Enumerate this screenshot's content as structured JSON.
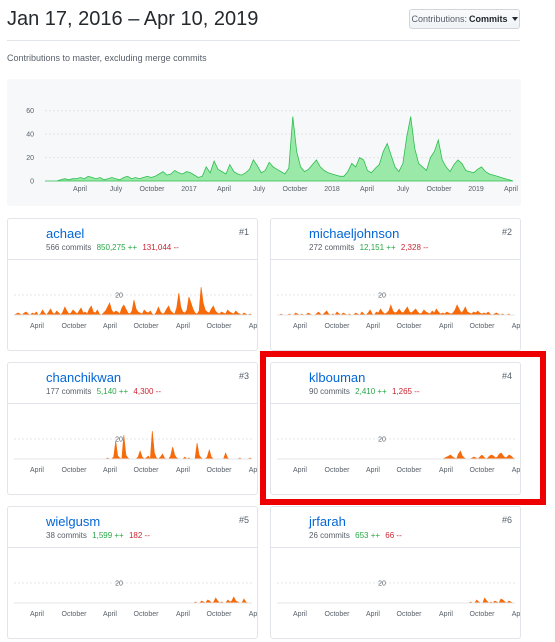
{
  "header": {
    "date_range": "Jan 17, 2016 – Apr 10, 2019",
    "contributions_label": "Contributions:",
    "contributions_value": "Commits",
    "subtitle": "Contributions to master, excluding merge commits"
  },
  "colors": {
    "main_area": "#2cbe4e",
    "main_fill": "#9be9a8",
    "user_area": "#f66a0a",
    "highlight": "#ee0000",
    "link": "#0366d6"
  },
  "chart_data": [
    {
      "type": "area",
      "name": "main-contributions",
      "y_ticks": [
        "60",
        "40",
        "20",
        "0"
      ],
      "ylim": [
        0,
        70
      ],
      "x_ticks": [
        "April",
        "July",
        "October",
        "2017",
        "April",
        "July",
        "October",
        "2018",
        "April",
        "July",
        "October",
        "2019",
        "April"
      ],
      "values": [
        0,
        0,
        0,
        0,
        1,
        2,
        1,
        2,
        2,
        3,
        2,
        4,
        3,
        2,
        3,
        1,
        2,
        3,
        2,
        1,
        3,
        4,
        2,
        3,
        2,
        3,
        4,
        3,
        4,
        6,
        8,
        5,
        6,
        9,
        7,
        6,
        8,
        7,
        5,
        3,
        4,
        12,
        7,
        17,
        10,
        8,
        6,
        14,
        8,
        6,
        5,
        7,
        10,
        18,
        13,
        7,
        9,
        16,
        12,
        10,
        8,
        6,
        11,
        55,
        25,
        12,
        8,
        10,
        14,
        18,
        12,
        9,
        7,
        6,
        5,
        4,
        4,
        8,
        15,
        12,
        20,
        18,
        9,
        7,
        11,
        14,
        25,
        32,
        22,
        12,
        8,
        15,
        38,
        55,
        28,
        15,
        12,
        9,
        20,
        25,
        35,
        18,
        12,
        8,
        14,
        18,
        15,
        9,
        8,
        7,
        10,
        12,
        8,
        6,
        5,
        4,
        3,
        2,
        1,
        0
      ]
    },
    {
      "type": "area",
      "name": "achael",
      "y_tick": "20",
      "ylim": [
        0,
        35
      ],
      "x_ticks": [
        "April",
        "October",
        "April",
        "October",
        "April",
        "October",
        "Ap"
      ],
      "values": [
        0,
        1,
        2,
        1,
        0,
        2,
        3,
        1,
        0,
        2,
        1,
        3,
        0,
        1,
        5,
        2,
        0,
        3,
        6,
        2,
        1,
        4,
        2,
        0,
        3,
        8,
        4,
        1,
        2,
        5,
        3,
        1,
        4,
        7,
        2,
        3,
        1,
        6,
        9,
        3,
        2,
        5,
        1,
        0,
        2,
        4,
        8,
        12,
        5,
        2,
        4,
        3,
        1,
        7,
        10,
        6,
        2,
        1,
        4,
        15,
        6,
        3,
        2,
        1,
        5,
        3,
        2,
        4,
        1,
        0,
        3,
        8,
        3,
        1,
        2,
        6,
        9,
        4,
        2,
        1,
        7,
        22,
        8,
        3,
        2,
        5,
        18,
        12,
        6,
        2,
        1,
        4,
        28,
        12,
        5,
        3,
        2,
        6,
        9,
        4,
        2,
        1,
        3,
        2,
        1,
        5,
        3,
        2,
        1,
        4,
        2,
        1,
        0,
        2,
        1,
        0,
        1,
        0
      ]
    },
    {
      "type": "area",
      "name": "michaeljohnson",
      "y_tick": "20",
      "ylim": [
        0,
        35
      ],
      "x_ticks": [
        "April",
        "October",
        "April",
        "October",
        "April",
        "October",
        "Ap"
      ],
      "values": [
        0,
        0,
        1,
        0,
        0,
        0,
        1,
        0,
        0,
        2,
        1,
        0,
        1,
        0,
        0,
        2,
        1,
        0,
        0,
        1,
        3,
        1,
        0,
        2,
        4,
        1,
        0,
        1,
        0,
        3,
        1,
        0,
        2,
        1,
        0,
        1,
        0,
        0,
        2,
        1,
        0,
        3,
        1,
        0,
        2,
        5,
        1,
        0,
        3,
        2,
        6,
        3,
        1,
        2,
        4,
        10,
        4,
        2,
        3,
        6,
        3,
        2,
        5,
        8,
        3,
        2,
        4,
        6,
        3,
        1,
        2,
        5,
        3,
        2,
        1,
        4,
        2,
        6,
        3,
        1,
        2,
        1,
        3,
        2,
        1,
        2,
        5,
        10,
        6,
        2,
        4,
        8,
        3,
        2,
        1,
        3,
        2,
        4,
        2,
        1,
        2,
        1,
        3,
        1,
        0,
        1,
        2,
        1,
        0,
        1,
        0,
        0,
        1,
        0,
        0,
        0
      ]
    },
    {
      "type": "area",
      "name": "chanchikwan",
      "y_tick": "20",
      "ylim": [
        0,
        35
      ],
      "x_ticks": [
        "April",
        "October",
        "April",
        "October",
        "April",
        "October",
        "Ap"
      ],
      "values": [
        0,
        0,
        0,
        0,
        0,
        0,
        0,
        0,
        0,
        0,
        0,
        0,
        0,
        0,
        0,
        0,
        0,
        0,
        0,
        0,
        0,
        0,
        0,
        0,
        0,
        0,
        0,
        0,
        0,
        0,
        0,
        0,
        0,
        0,
        0,
        0,
        0,
        0,
        0,
        0,
        0,
        0,
        0,
        0,
        0,
        0,
        1,
        0,
        0,
        2,
        18,
        3,
        1,
        0,
        24,
        4,
        1,
        0,
        0,
        0,
        0,
        2,
        8,
        2,
        0,
        1,
        3,
        0,
        28,
        6,
        1,
        0,
        2,
        5,
        1,
        0,
        0,
        3,
        12,
        4,
        1,
        0,
        0,
        0,
        2,
        0,
        1,
        0,
        0,
        0,
        16,
        4,
        1,
        0,
        0,
        2,
        9,
        2,
        0,
        0,
        0,
        0,
        0,
        0,
        6,
        1,
        0,
        0,
        0,
        0,
        0,
        1,
        0,
        0,
        0,
        0,
        1,
        0
      ]
    },
    {
      "type": "area",
      "name": "klbouman",
      "y_tick": "20",
      "ylim": [
        0,
        35
      ],
      "x_ticks": [
        "April",
        "October",
        "April",
        "October",
        "April",
        "October",
        "Ap"
      ],
      "values": [
        0,
        0,
        0,
        0,
        0,
        0,
        0,
        0,
        0,
        0,
        0,
        0,
        0,
        0,
        0,
        0,
        0,
        0,
        0,
        0,
        0,
        0,
        0,
        0,
        0,
        0,
        0,
        0,
        0,
        0,
        0,
        0,
        0,
        0,
        0,
        0,
        0,
        0,
        0,
        0,
        0,
        0,
        0,
        0,
        0,
        0,
        0,
        0,
        0,
        0,
        0,
        0,
        0,
        0,
        0,
        0,
        0,
        0,
        0,
        0,
        0,
        0,
        0,
        0,
        0,
        0,
        0,
        0,
        0,
        0,
        0,
        0,
        0,
        0,
        0,
        0,
        0,
        0,
        0,
        0,
        0,
        0,
        0,
        0,
        0,
        0,
        1,
        2,
        3,
        4,
        2,
        1,
        0,
        5,
        8,
        3,
        1,
        0,
        0,
        0,
        1,
        2,
        1,
        0,
        2,
        4,
        2,
        0,
        1,
        3,
        4,
        3,
        1,
        2,
        5,
        6,
        3,
        1,
        2,
        4,
        3,
        1,
        0
      ]
    },
    {
      "type": "area",
      "name": "wielgusm",
      "y_tick": "20",
      "ylim": [
        0,
        35
      ],
      "x_ticks": [
        "April",
        "October",
        "April",
        "October",
        "April",
        "October",
        "Ap"
      ],
      "values": [
        0,
        0,
        0,
        0,
        0,
        0,
        0,
        0,
        0,
        0,
        0,
        0,
        0,
        0,
        0,
        0,
        0,
        0,
        0,
        0,
        0,
        0,
        0,
        0,
        0,
        0,
        0,
        0,
        0,
        0,
        0,
        0,
        0,
        0,
        0,
        0,
        0,
        0,
        0,
        0,
        0,
        0,
        0,
        0,
        0,
        0,
        0,
        0,
        0,
        0,
        0,
        0,
        0,
        0,
        0,
        0,
        0,
        0,
        0,
        0,
        0,
        0,
        0,
        0,
        0,
        0,
        0,
        0,
        0,
        0,
        0,
        0,
        0,
        0,
        0,
        0,
        0,
        0,
        0,
        0,
        0,
        0,
        0,
        0,
        0,
        0,
        0,
        0,
        0,
        0,
        1,
        0,
        0,
        2,
        1,
        0,
        3,
        2,
        0,
        1,
        5,
        2,
        0,
        1,
        0,
        0,
        3,
        1,
        2,
        6,
        2,
        1,
        0,
        0,
        4,
        1,
        0,
        0,
        0
      ]
    },
    {
      "type": "area",
      "name": "jrfarah",
      "y_tick": "20",
      "ylim": [
        0,
        35
      ],
      "x_ticks": [
        "April",
        "October",
        "April",
        "October",
        "April",
        "October",
        "Ap"
      ],
      "values": [
        0,
        0,
        0,
        0,
        0,
        0,
        0,
        0,
        0,
        0,
        0,
        0,
        0,
        0,
        0,
        0,
        0,
        0,
        0,
        0,
        0,
        0,
        0,
        0,
        0,
        0,
        0,
        0,
        0,
        0,
        0,
        0,
        0,
        0,
        0,
        0,
        0,
        0,
        0,
        0,
        0,
        0,
        0,
        0,
        0,
        0,
        0,
        0,
        0,
        0,
        0,
        0,
        0,
        0,
        0,
        0,
        0,
        0,
        0,
        0,
        0,
        0,
        0,
        0,
        0,
        0,
        0,
        0,
        0,
        0,
        0,
        0,
        0,
        0,
        0,
        0,
        0,
        0,
        0,
        0,
        0,
        0,
        0,
        0,
        0,
        0,
        0,
        0,
        0,
        0,
        0,
        0,
        0,
        0,
        0,
        0,
        1,
        0,
        0,
        3,
        1,
        0,
        0,
        5,
        2,
        0,
        1,
        0,
        2,
        1,
        0,
        4,
        3,
        1,
        0,
        2,
        1,
        0,
        0
      ]
    }
  ],
  "contributors": [
    {
      "rank": "#1",
      "name": "achael",
      "commits": "566 commits",
      "additions": "850,275 ++",
      "deletions": "131,044 --"
    },
    {
      "rank": "#2",
      "name": "michaeljohnson",
      "commits": "272 commits",
      "additions": "12,151 ++",
      "deletions": "2,328 --"
    },
    {
      "rank": "#3",
      "name": "chanchikwan",
      "commits": "177 commits",
      "additions": "5,140 ++",
      "deletions": "4,300 --"
    },
    {
      "rank": "#4",
      "name": "klbouman",
      "commits": "90 commits",
      "additions": "2,410 ++",
      "deletions": "1,265 --"
    },
    {
      "rank": "#5",
      "name": "wielgusm",
      "commits": "38 commits",
      "additions": "1,599 ++",
      "deletions": "182 --"
    },
    {
      "rank": "#6",
      "name": "jrfarah",
      "commits": "26 commits",
      "additions": "653 ++",
      "deletions": "66 --"
    }
  ]
}
